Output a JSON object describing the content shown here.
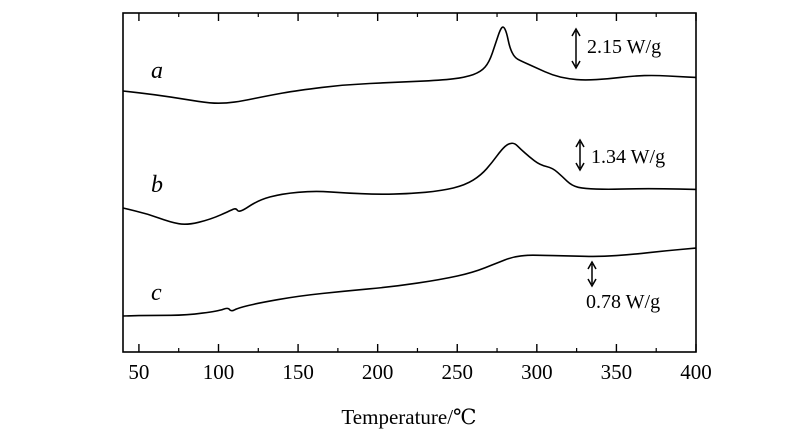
{
  "chart_data": {
    "type": "line",
    "xlabel": "Temperature/℃",
    "xlim": [
      40,
      400
    ],
    "xticks": [
      50,
      100,
      150,
      200,
      250,
      300,
      350,
      400
    ],
    "yticks_shown": false,
    "grid": false,
    "series": [
      {
        "name": "a",
        "scale_label": "2.15 W/g",
        "x": [
          40,
          60,
          80,
          95,
          105,
          115,
          130,
          150,
          180,
          210,
          240,
          255,
          265,
          270,
          274,
          277,
          279,
          281,
          283,
          286,
          290,
          300,
          310,
          320,
          330,
          345,
          360,
          375,
          390,
          400
        ],
        "y": [
          0.0,
          -0.25,
          -0.6,
          -0.85,
          -0.85,
          -0.7,
          -0.35,
          0.05,
          0.45,
          0.6,
          0.75,
          0.95,
          1.35,
          2.0,
          3.3,
          4.3,
          4.55,
          4.1,
          3.0,
          2.35,
          2.1,
          1.6,
          1.1,
          0.85,
          0.75,
          0.85,
          1.05,
          1.1,
          1.0,
          0.95
        ]
      },
      {
        "name": "b",
        "scale_label": "1.34 W/g",
        "x": [
          40,
          55,
          70,
          80,
          95,
          108,
          111,
          113,
          125,
          140,
          160,
          180,
          200,
          220,
          240,
          255,
          265,
          272,
          278,
          282,
          286,
          290,
          295,
          302,
          310,
          316,
          322,
          330,
          345,
          360,
          380,
          400
        ],
        "y": [
          0.0,
          -0.4,
          -1.0,
          -1.2,
          -0.8,
          -0.15,
          0.0,
          -0.35,
          0.55,
          1.0,
          1.2,
          1.05,
          0.95,
          1.0,
          1.2,
          1.6,
          2.3,
          3.2,
          4.1,
          4.5,
          4.55,
          4.1,
          3.6,
          3.0,
          2.8,
          2.2,
          1.55,
          1.35,
          1.3,
          1.35,
          1.35,
          1.3
        ]
      },
      {
        "name": "c",
        "scale_label": "0.78 W/g",
        "x": [
          40,
          60,
          80,
          100,
          106,
          108,
          112,
          125,
          150,
          180,
          210,
          240,
          260,
          275,
          285,
          295,
          300,
          320,
          340,
          360,
          380,
          400
        ],
        "y": [
          0.0,
          0.05,
          0.05,
          0.35,
          0.6,
          0.3,
          0.55,
          0.9,
          1.4,
          1.75,
          2.05,
          2.55,
          3.05,
          3.7,
          4.15,
          4.25,
          4.25,
          4.2,
          4.15,
          4.3,
          4.55,
          4.75
        ]
      }
    ]
  }
}
